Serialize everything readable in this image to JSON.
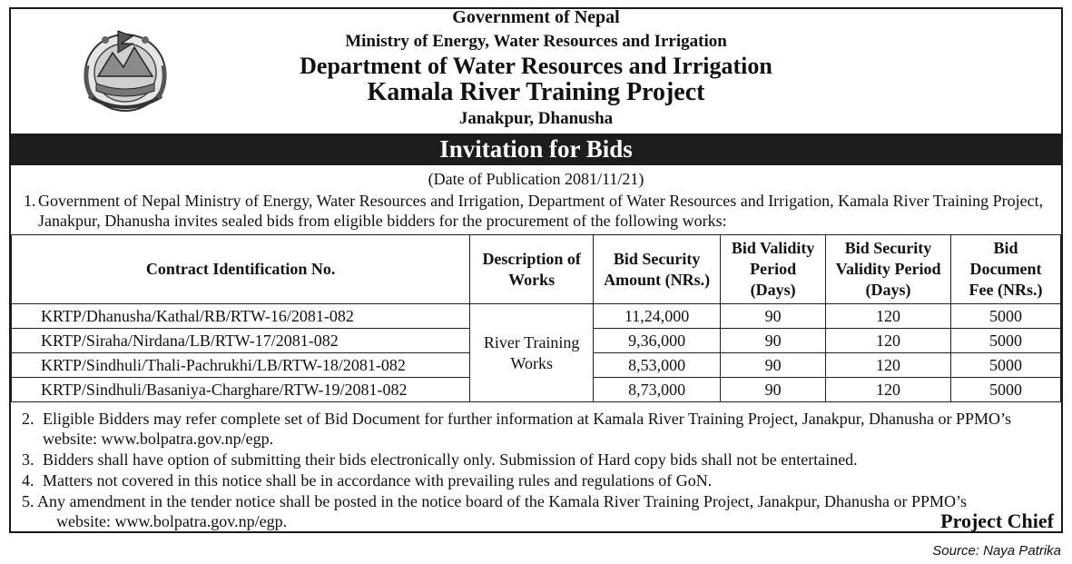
{
  "header": {
    "line1": "Government of Nepal",
    "line2": "Ministry of Energy, Water Resources and Irrigation",
    "line3": "Department of Water Resources and Irrigation",
    "line4": "Kamala River Training Project",
    "line5": "Janakpur, Dhanusha",
    "emblem_icon": "nepal-emblem-icon"
  },
  "title": "Invitation for Bids",
  "publication": "(Date of Publication 2081/11/21)",
  "intro": {
    "num": "1.",
    "text": "Government of Nepal Ministry of Energy, Water Resources and Irrigation, Department of Water Resources and Irrigation, Kamala River Training Project, Janakpur, Dhanusha invites sealed bids from eligible bidders for the procurement of the following works:"
  },
  "table": {
    "headers": {
      "contract": "Contract Identification No.",
      "description": "Description of Works",
      "security": "Bid Security Amount (NRs.)",
      "validity": "Bid Validity Period (Days)",
      "sec_validity": "Bid Security Validity Period (Days)",
      "fee": "Bid Document Fee (NRs.)"
    },
    "description": "River Training Works",
    "rows": [
      {
        "id": "KRTP/Dhanusha/Kathal/RB/RTW-16/2081-082",
        "security": "11,24,000",
        "validity": "90",
        "sec_validity": "120",
        "fee": "5000"
      },
      {
        "id": "KRTP/Siraha/Nirdana/LB/RTW-17/2081-082",
        "security": "9,36,000",
        "validity": "90",
        "sec_validity": "120",
        "fee": "5000"
      },
      {
        "id": "KRTP/Sindhuli/Thali-Pachrukhi/LB/RTW-18/2081-082",
        "security": "8,53,000",
        "validity": "90",
        "sec_validity": "120",
        "fee": "5000"
      },
      {
        "id": "KRTP/Sindhuli/Basaniya-Charghare/RTW-19/2081-082",
        "security": "8,73,000",
        "validity": "90",
        "sec_validity": "120",
        "fee": "5000"
      }
    ]
  },
  "notes": [
    {
      "num": "2.",
      "text": "Eligible Bidders may refer complete set of Bid Document for further information at Kamala River Training Project, Janakpur, Dhanusha or PPMO’s website: www.bolpatra.gov.np/egp."
    },
    {
      "num": "3.",
      "text": "Bidders shall have option of submitting their bids electronically only. Submission of Hard copy bids shall not be entertained."
    },
    {
      "num": "4.",
      "text": "Matters not covered in this notice shall be in accordance with prevailing rules and regulations of GoN."
    },
    {
      "num": "5.",
      "text": "Any amendment in the tender notice shall be posted in the notice board of the Kamala River Training Project, Janakpur, Dhanusha or PPMO’s",
      "text2": "website:  www.bolpatra.gov.np/egp."
    }
  ],
  "signature": "Project Chief",
  "source": "Source: Naya Patrika"
}
